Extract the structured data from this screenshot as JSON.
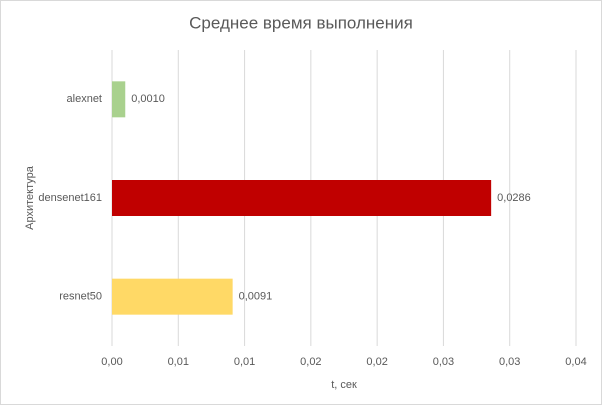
{
  "chart_data": {
    "type": "hbar",
    "title": "Среднее время выполнения",
    "x_label": "t, сек",
    "y_label": "Архитектура",
    "categories": [
      "alexnet",
      "densenet161",
      "resnet50"
    ],
    "values": [
      0.001,
      0.0286,
      0.0091
    ],
    "value_labels": [
      "0,0010",
      "0,0286",
      "0,0091"
    ],
    "colors": [
      "#a9d18e",
      "#c00000",
      "#ffd966"
    ],
    "xlim": [
      0,
      0.035
    ],
    "xticks": [
      {
        "value": 0,
        "label": "0,00"
      },
      {
        "value": 0.005,
        "label": "0,01"
      },
      {
        "value": 0.01,
        "label": "0,01"
      },
      {
        "value": 0.015,
        "label": "0,02"
      },
      {
        "value": 0.02,
        "label": "0,02"
      },
      {
        "value": 0.025,
        "label": "0,03"
      },
      {
        "value": 0.03,
        "label": "0,03"
      },
      {
        "value": 0.035,
        "label": "0,04"
      }
    ],
    "grid": true
  }
}
